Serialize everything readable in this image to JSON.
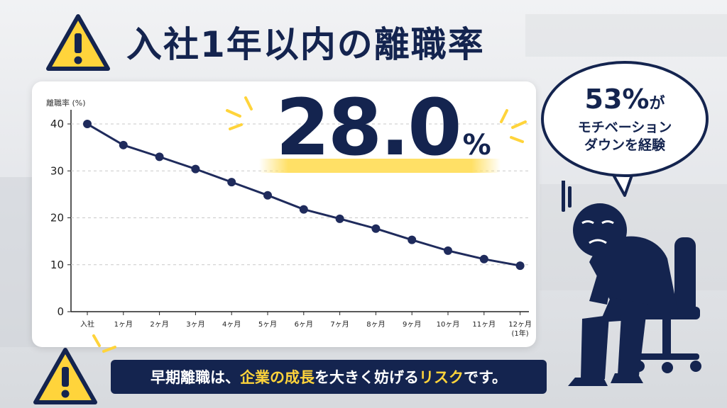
{
  "title": "入社1年以内の離職率",
  "highlight_stat": {
    "value": "28.0",
    "unit": "%"
  },
  "bubble": {
    "line1_value": "53%",
    "line1_suffix": "が",
    "line2": "モチベーション",
    "line3": "ダウンを経験"
  },
  "banner": {
    "parts": [
      {
        "text": "早期離職は、",
        "highlight": false
      },
      {
        "text": "企業の成長",
        "highlight": true
      },
      {
        "text": "を大きく妨げる",
        "highlight": false
      },
      {
        "text": "リスク",
        "highlight": true
      },
      {
        "text": "です。",
        "highlight": false
      }
    ]
  },
  "colors": {
    "navy": "#14244f",
    "accent": "#ffd43b",
    "line": "#1f2b5c"
  },
  "icons": [
    "warning-icon",
    "sad-person-icon",
    "speech-bubble-icon"
  ],
  "chart_data": {
    "type": "line",
    "ylabel": "離職率 (%)",
    "ylim": [
      0,
      40
    ],
    "yticks": [
      0,
      10,
      20,
      30,
      40
    ],
    "grid": true,
    "categories": [
      "入社",
      "1ヶ月",
      "2ヶ月",
      "3ヶ月",
      "4ヶ月",
      "5ヶ月",
      "6ヶ月",
      "7ヶ月",
      "8ヶ月",
      "9ヶ月",
      "10ヶ月",
      "11ヶ月",
      "12ヶ月"
    ],
    "category_sublabels": {
      "12": "(1年)"
    },
    "series": [
      {
        "values": [
          40,
          35.5,
          33,
          30.4,
          27.6,
          24.8,
          21.8,
          19.8,
          17.7,
          15.3,
          13,
          11.2,
          9.8
        ]
      }
    ]
  }
}
